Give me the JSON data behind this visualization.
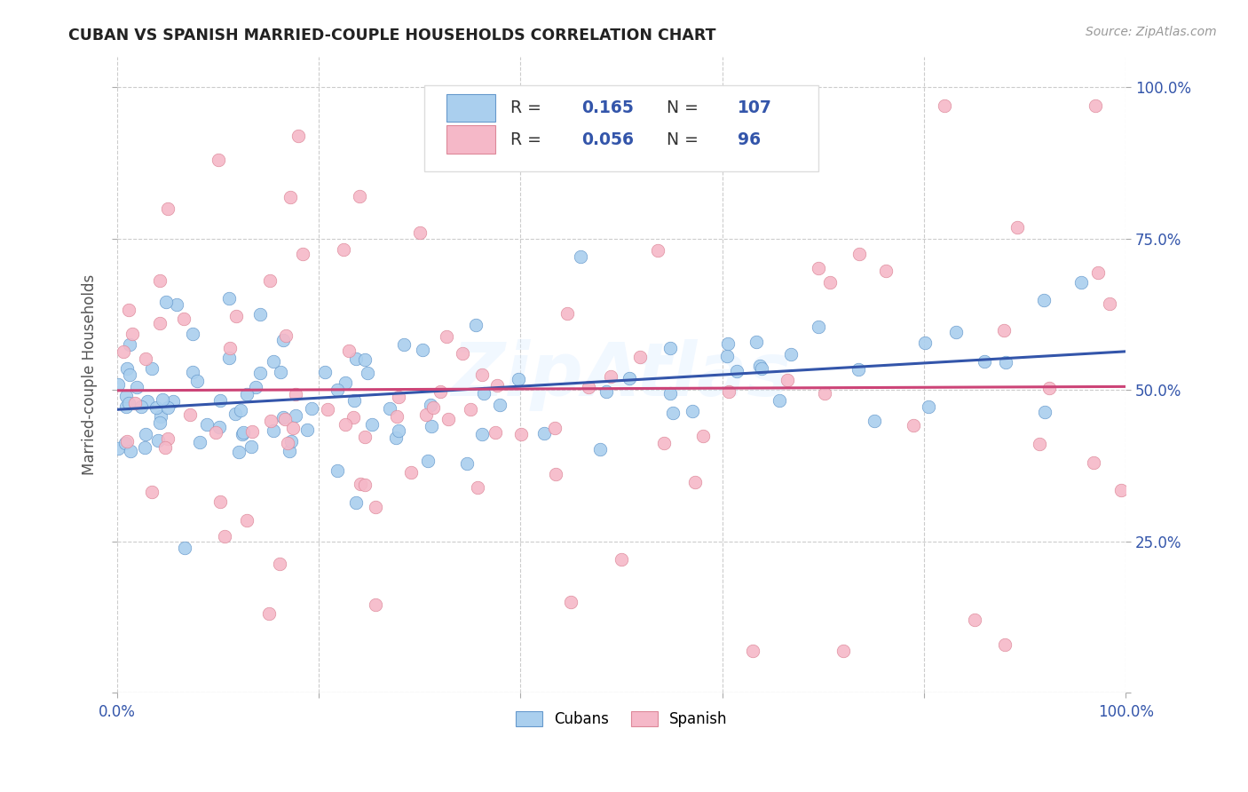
{
  "title": "CUBAN VS SPANISH MARRIED-COUPLE HOUSEHOLDS CORRELATION CHART",
  "source": "Source: ZipAtlas.com",
  "ylabel": "Married-couple Households",
  "watermark": "ZipAtlas",
  "cubans_R": 0.165,
  "cubans_N": 107,
  "spanish_R": 0.056,
  "spanish_N": 96,
  "cubans_color": "#AACFEE",
  "cubans_edge_color": "#6699CC",
  "cubans_line_color": "#3355AA",
  "spanish_color": "#F5B8C8",
  "spanish_edge_color": "#DD8899",
  "spanish_line_color": "#CC4477",
  "background_color": "#FFFFFF",
  "grid_color": "#CCCCCC",
  "title_color": "#222222",
  "axis_label_color": "#3355AA",
  "xlim": [
    0.0,
    1.0
  ],
  "ylim": [
    0.0,
    1.05
  ],
  "xtick_positions": [
    0.0,
    0.2,
    0.4,
    0.6,
    0.8,
    1.0
  ],
  "ytick_positions": [
    0.0,
    0.25,
    0.5,
    0.75,
    1.0
  ],
  "xticklabels": [
    "0.0%",
    "",
    "",
    "",
    "",
    "100.0%"
  ],
  "yticklabels_right": [
    "",
    "25.0%",
    "50.0%",
    "75.0%",
    "100.0%"
  ]
}
